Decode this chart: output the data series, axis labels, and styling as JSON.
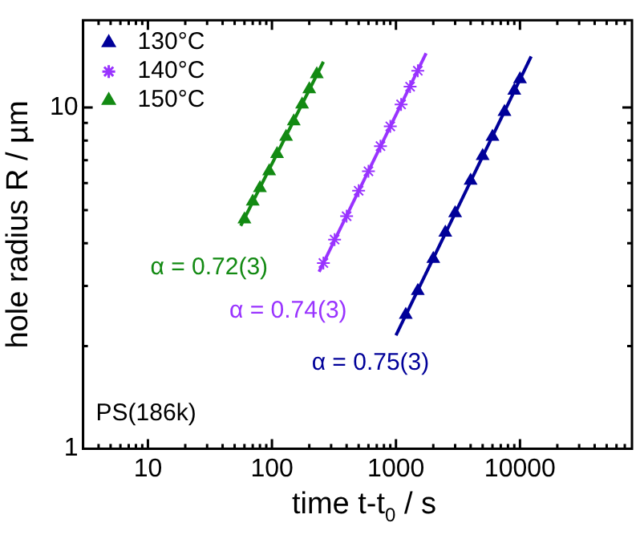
{
  "chart_data": {
    "type": "scatter",
    "xlabel": "time t-t$_{0}$ / s",
    "ylabel": "hole radius R / µm",
    "log": "xy",
    "xlim": [
      3,
      80000
    ],
    "ylim": [
      1,
      18
    ],
    "xticks": [
      {
        "value": 4,
        "label": null
      },
      {
        "value": 5,
        "label": null
      },
      {
        "value": 6,
        "label": null
      },
      {
        "value": 7,
        "label": null
      },
      {
        "value": 8,
        "label": null
      },
      {
        "value": 9,
        "label": null
      },
      10,
      {
        "value": 20,
        "label": null
      },
      {
        "value": 30,
        "label": null
      },
      {
        "value": 40,
        "label": null
      },
      {
        "value": 50,
        "label": null
      },
      {
        "value": 60,
        "label": null
      },
      {
        "value": 70,
        "label": null
      },
      {
        "value": 80,
        "label": null
      },
      {
        "value": 90,
        "label": null
      },
      100,
      {
        "value": 200,
        "label": null
      },
      {
        "value": 300,
        "label": null
      },
      {
        "value": 400,
        "label": null
      },
      {
        "value": 500,
        "label": null
      },
      {
        "value": 600,
        "label": null
      },
      {
        "value": 700,
        "label": null
      },
      {
        "value": 800,
        "label": null
      },
      {
        "value": 900,
        "label": null
      },
      1000,
      {
        "value": 2000,
        "label": null
      },
      {
        "value": 3000,
        "label": null
      },
      {
        "value": 4000,
        "label": null
      },
      {
        "value": 5000,
        "label": null
      },
      {
        "value": 6000,
        "label": null
      },
      {
        "value": 7000,
        "label": null
      },
      {
        "value": 8000,
        "label": null
      },
      {
        "value": 9000,
        "label": null
      },
      10000,
      {
        "value": 20000,
        "label": null
      },
      {
        "value": 30000,
        "label": null
      },
      {
        "value": 40000,
        "label": null
      },
      {
        "value": 50000,
        "label": null
      },
      {
        "value": 60000,
        "label": null
      },
      {
        "value": 70000,
        "label": null
      }
    ],
    "yticks": [
      1,
      {
        "value": 2,
        "label": null
      },
      {
        "value": 3,
        "label": null
      },
      {
        "value": 4,
        "label": null
      },
      {
        "value": 5,
        "label": null
      },
      {
        "value": 6,
        "label": null
      },
      {
        "value": 7,
        "label": null
      },
      {
        "value": 8,
        "label": null
      },
      {
        "value": 9,
        "label": null
      },
      10
    ],
    "legend": "top left",
    "grid": false,
    "series": [
      {
        "name": "130°C",
        "marker": "triangle",
        "color": "#000099",
        "x": [
          1200,
          1500,
          2000,
          2500,
          3000,
          4000,
          5000,
          6000,
          7500,
          9000,
          10000
        ],
        "values": [
          2.47,
          2.9,
          3.6,
          4.3,
          4.9,
          6.1,
          7.2,
          8.2,
          9.7,
          11.2,
          12.1
        ]
      },
      {
        "name": "140°C",
        "marker": "cross",
        "color": "#9933ff",
        "x": [
          260,
          320,
          400,
          500,
          600,
          750,
          900,
          1100,
          1300,
          1500
        ],
        "values": [
          3.5,
          4.1,
          4.8,
          5.7,
          6.5,
          7.7,
          8.8,
          10.2,
          11.5,
          12.8
        ]
      },
      {
        "name": "150°C",
        "marker": "triangle",
        "color": "#138a13",
        "x": [
          60,
          70,
          80,
          95,
          110,
          130,
          150,
          175,
          200,
          230
        ],
        "values": [
          4.7,
          5.3,
          5.8,
          6.5,
          7.3,
          8.2,
          9.1,
          10.2,
          11.3,
          12.5
        ]
      },
      {
        "type": "line",
        "marker": "none",
        "color": "#000099",
        "x": [
          1000,
          12300
        ],
        "values": [
          2.15,
          14.1
        ]
      },
      {
        "type": "line",
        "marker": "none",
        "color": "#9933ff",
        "x": [
          240,
          1750
        ],
        "values": [
          3.3,
          14.4
        ]
      },
      {
        "type": "line",
        "marker": "none",
        "color": "#138a13",
        "x": [
          56,
          260
        ],
        "values": [
          4.5,
          13.6
        ]
      }
    ],
    "annotations": [
      "α = 0.75(3)",
      "α = 0.74(3)",
      "α = 0.72(3)",
      "PS(186k)"
    ]
  }
}
